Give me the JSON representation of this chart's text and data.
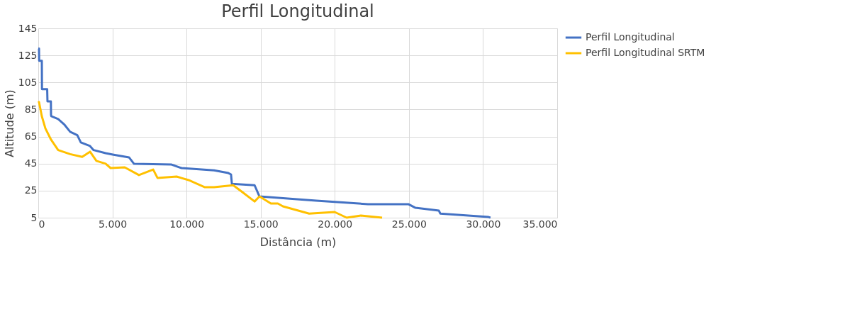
{
  "chart_data": {
    "type": "line",
    "title": "Perfil Longitudinal",
    "xlabel": "Distância (m)",
    "ylabel": "Altitude (m)",
    "xlim": [
      0,
      35000
    ],
    "xticks": [
      0,
      {
        "value": 5000,
        "label": "5.000"
      },
      {
        "value": 10000,
        "label": "10.000"
      },
      {
        "value": 15000,
        "label": "15.000"
      },
      {
        "value": 20000,
        "label": "20.000"
      },
      {
        "value": 25000,
        "label": "25.000"
      },
      {
        "value": 30000,
        "label": "30.000"
      },
      {
        "value": 35000,
        "label": "35.000"
      }
    ],
    "ylim": [
      5,
      145
    ],
    "yticks": [
      5,
      25,
      45,
      65,
      85,
      105,
      125,
      145
    ],
    "grid": true,
    "legend": "right",
    "marker": "none",
    "line_style": "solid",
    "series": [
      {
        "name": "Perfil Longitudinal",
        "color": "#4472c4",
        "x": [
          0,
          50,
          60,
          200,
          240,
          250,
          600,
          620,
          640,
          850,
          860,
          880,
          1340,
          1770,
          2150,
          2630,
          2870,
          3490,
          3730,
          4540,
          5020,
          6120,
          6460,
          8990,
          9660,
          11860,
          12820,
          13000,
          13060,
          14590,
          14920,
          17460,
          18750,
          22240,
          24960,
          25440,
          27020,
          27120,
          30370,
          30500
        ],
        "values": [
          130,
          130,
          121,
          121,
          121,
          100,
          100,
          91,
          91,
          91,
          81,
          80,
          78,
          73.7,
          68.5,
          66,
          60.6,
          58,
          55,
          52.7,
          51.7,
          49.6,
          44.8,
          44.3,
          41.7,
          40,
          38,
          37,
          30,
          29,
          20.7,
          18.6,
          17.6,
          15,
          15,
          12.3,
          10.2,
          8,
          5.5,
          5
        ]
      },
      {
        "name": "Perfil Longitudinal SRTM",
        "color": "#ffc000",
        "x": [
          0,
          50,
          240,
          480,
          860,
          1340,
          2150,
          2960,
          3490,
          3920,
          4540,
          4880,
          5830,
          6790,
          7750,
          8040,
          9330,
          10140,
          11240,
          11860,
          13150,
          13770,
          14590,
          14920,
          15690,
          16160,
          16500,
          18270,
          19990,
          20800,
          21760,
          23190
        ],
        "values": [
          90,
          90.5,
          80,
          71,
          62.7,
          55,
          52,
          50,
          53.8,
          47,
          44.9,
          41.7,
          42.2,
          36.5,
          40.6,
          34.4,
          35.4,
          32.8,
          27.5,
          27.5,
          29,
          23.9,
          17,
          20.7,
          15.5,
          15.5,
          13.4,
          8,
          9.2,
          5,
          6.6,
          5
        ]
      }
    ]
  }
}
